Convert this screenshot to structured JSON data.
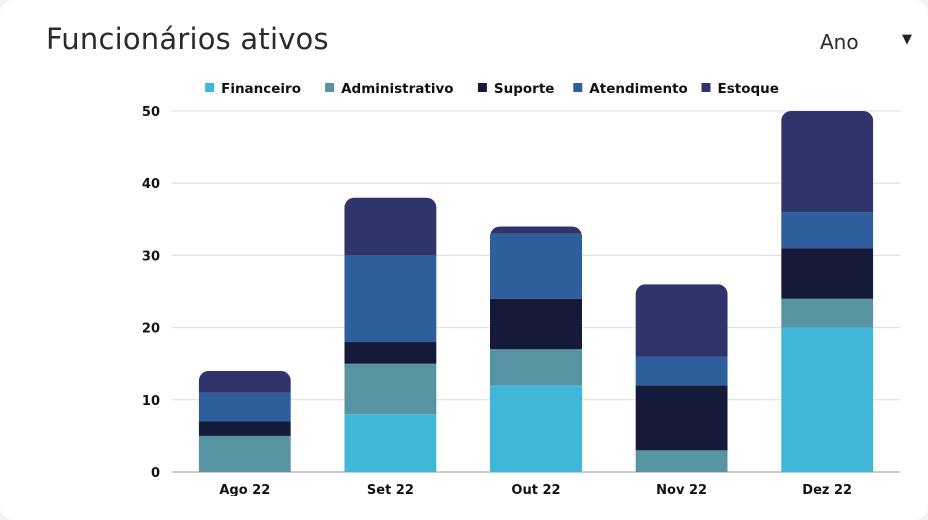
{
  "header": {
    "title": "Funcionários ativos",
    "period_select": {
      "value": "Ano",
      "icon": "chevron-down-icon"
    }
  },
  "chart_data": {
    "type": "bar",
    "stacked": true,
    "categories": [
      "Ago 22",
      "Set 22",
      "Out 22",
      "Nov 22",
      "Dez 22"
    ],
    "series": [
      {
        "name": "Financeiro",
        "color": "#40b6d8",
        "values": [
          0,
          8,
          12,
          0,
          20
        ]
      },
      {
        "name": "Administrativo",
        "color": "#5794a3",
        "values": [
          5,
          7,
          5,
          3,
          4
        ]
      },
      {
        "name": "Suporte",
        "color": "#161a3a",
        "values": [
          2,
          3,
          7,
          9,
          7
        ]
      },
      {
        "name": "Atendimento",
        "color": "#2e5f9c",
        "values": [
          4,
          12,
          9,
          4,
          5
        ]
      },
      {
        "name": "Estoque",
        "color": "#2f346b",
        "values": [
          3,
          8,
          1,
          10,
          14
        ]
      }
    ],
    "ylim": [
      0,
      50
    ],
    "yticks": [
      0,
      10,
      20,
      30,
      40,
      50
    ],
    "grid": true,
    "legend": "top-center"
  }
}
